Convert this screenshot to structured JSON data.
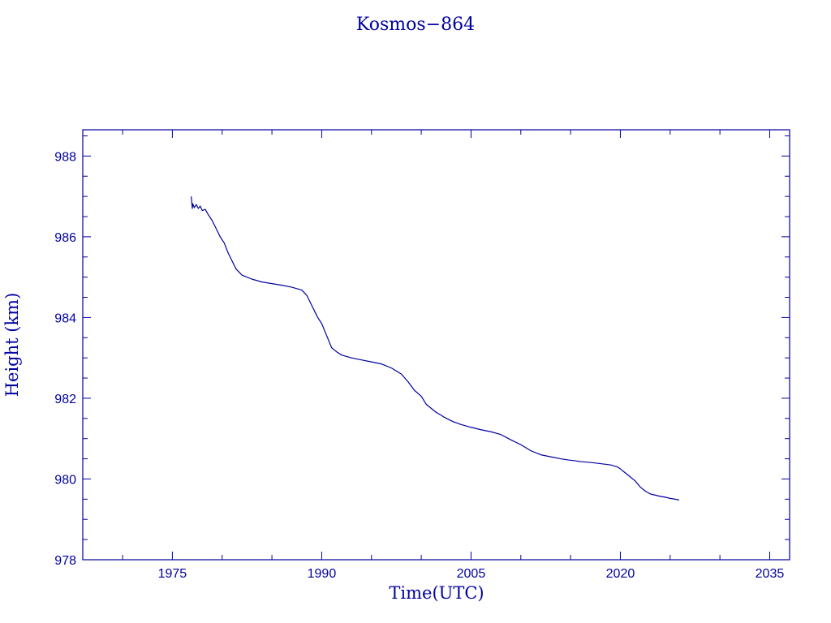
{
  "chart_data": {
    "type": "line",
    "title": "Kosmos−864",
    "xlabel": "Time(UTC)",
    "ylabel": "Height (km)",
    "xlim": [
      1966,
      2037
    ],
    "ylim": [
      978,
      988.65
    ],
    "x_ticks": [
      1975,
      1990,
      2005,
      2020,
      2035
    ],
    "y_ticks": [
      978,
      980,
      982,
      984,
      986,
      988
    ],
    "x_minor_step": 5,
    "y_minor_step": 0.5,
    "grid": false,
    "colors": {
      "series": "#0000a0",
      "axes": "#0000a0",
      "text": "#0000a0"
    },
    "series": [
      {
        "x": [
          1976.9,
          1977.0,
          1977.05,
          1977.2,
          1977.4,
          1977.6,
          1977.8,
          1978.0,
          1978.3,
          1978.6,
          1979.0,
          1979.4,
          1979.8,
          1980.2,
          1980.6,
          1981.0,
          1981.4,
          1982.0,
          1983.0,
          1984.0,
          1985.0,
          1986.0,
          1987.0,
          1988.0,
          1988.5,
          1988.8,
          1989.0,
          1989.3,
          1989.6,
          1990.0,
          1990.5,
          1991.0,
          1991.5,
          1992.0,
          1993.0,
          1994.0,
          1995.0,
          1996.0,
          1997.0,
          1998.0,
          1998.7,
          1999.3,
          2000.0,
          2000.5,
          2001.0,
          2001.5,
          2002.0,
          2002.3,
          2002.7,
          2003.2,
          2004.0,
          2005.0,
          2006.0,
          2007.0,
          2008.0,
          2009.0,
          2010.0,
          2011.0,
          2012.0,
          2013.0,
          2014.0,
          2014.8,
          2015.5,
          2016.0,
          2017.0,
          2018.0,
          2019.0,
          2019.7,
          2020.0,
          2020.5,
          2021.0,
          2021.5,
          2022.0,
          2022.5,
          2023.0,
          2023.5,
          2024.0,
          2024.5,
          2025.0,
          2025.5,
          2025.9
        ],
        "y": [
          987.0,
          986.7,
          986.82,
          986.72,
          986.8,
          986.7,
          986.76,
          986.65,
          986.68,
          986.55,
          986.4,
          986.2,
          986.0,
          985.85,
          985.6,
          985.4,
          985.2,
          985.05,
          984.95,
          984.88,
          984.84,
          984.8,
          984.75,
          984.68,
          984.55,
          984.4,
          984.3,
          984.15,
          984.0,
          983.85,
          983.55,
          983.25,
          983.15,
          983.07,
          983.0,
          982.95,
          982.9,
          982.85,
          982.75,
          982.6,
          982.4,
          982.2,
          982.05,
          981.85,
          981.75,
          981.65,
          981.58,
          981.53,
          981.48,
          981.42,
          981.35,
          981.28,
          981.22,
          981.17,
          981.1,
          980.97,
          980.85,
          980.7,
          980.6,
          980.55,
          980.5,
          980.47,
          980.45,
          980.43,
          980.41,
          980.38,
          980.35,
          980.3,
          980.25,
          980.15,
          980.05,
          979.95,
          979.8,
          979.7,
          979.63,
          979.6,
          979.57,
          979.55,
          979.52,
          979.5,
          979.48
        ]
      }
    ]
  }
}
